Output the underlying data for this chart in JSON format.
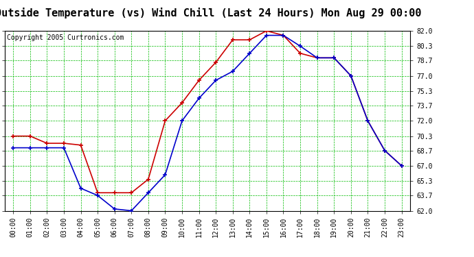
{
  "title": "Outside Temperature (vs) Wind Chill (Last 24 Hours) Mon Aug 29 00:00",
  "copyright": "Copyright 2005 Curtronics.com",
  "hours": [
    0,
    1,
    2,
    3,
    4,
    5,
    6,
    7,
    8,
    9,
    10,
    11,
    12,
    13,
    14,
    15,
    16,
    17,
    18,
    19,
    20,
    21,
    22,
    23
  ],
  "outside_temp": [
    70.3,
    70.3,
    69.5,
    69.5,
    69.3,
    64.0,
    64.0,
    64.0,
    65.5,
    72.0,
    74.0,
    76.5,
    78.5,
    81.0,
    81.0,
    82.0,
    81.5,
    79.5,
    79.0,
    79.0,
    77.0,
    72.0,
    68.7,
    67.0
  ],
  "wind_chill": [
    69.0,
    69.0,
    69.0,
    69.0,
    64.5,
    63.7,
    62.2,
    62.0,
    64.0,
    66.0,
    72.0,
    74.5,
    76.5,
    77.5,
    79.5,
    81.5,
    81.5,
    80.3,
    79.0,
    79.0,
    77.0,
    72.0,
    68.7,
    67.0
  ],
  "temp_color": "#cc0000",
  "chill_color": "#0000cc",
  "bg_color": "#ffffff",
  "plot_bg": "#ffffff",
  "grid_color": "#00bb00",
  "ylim_min": 62.0,
  "ylim_max": 82.0,
  "yticks": [
    62.0,
    63.7,
    65.3,
    67.0,
    68.7,
    70.3,
    72.0,
    73.7,
    75.3,
    77.0,
    78.7,
    80.3,
    82.0
  ],
  "title_fontsize": 11,
  "copyright_fontsize": 7,
  "tick_fontsize": 7,
  "marker_size": 4,
  "linewidth": 1.2
}
